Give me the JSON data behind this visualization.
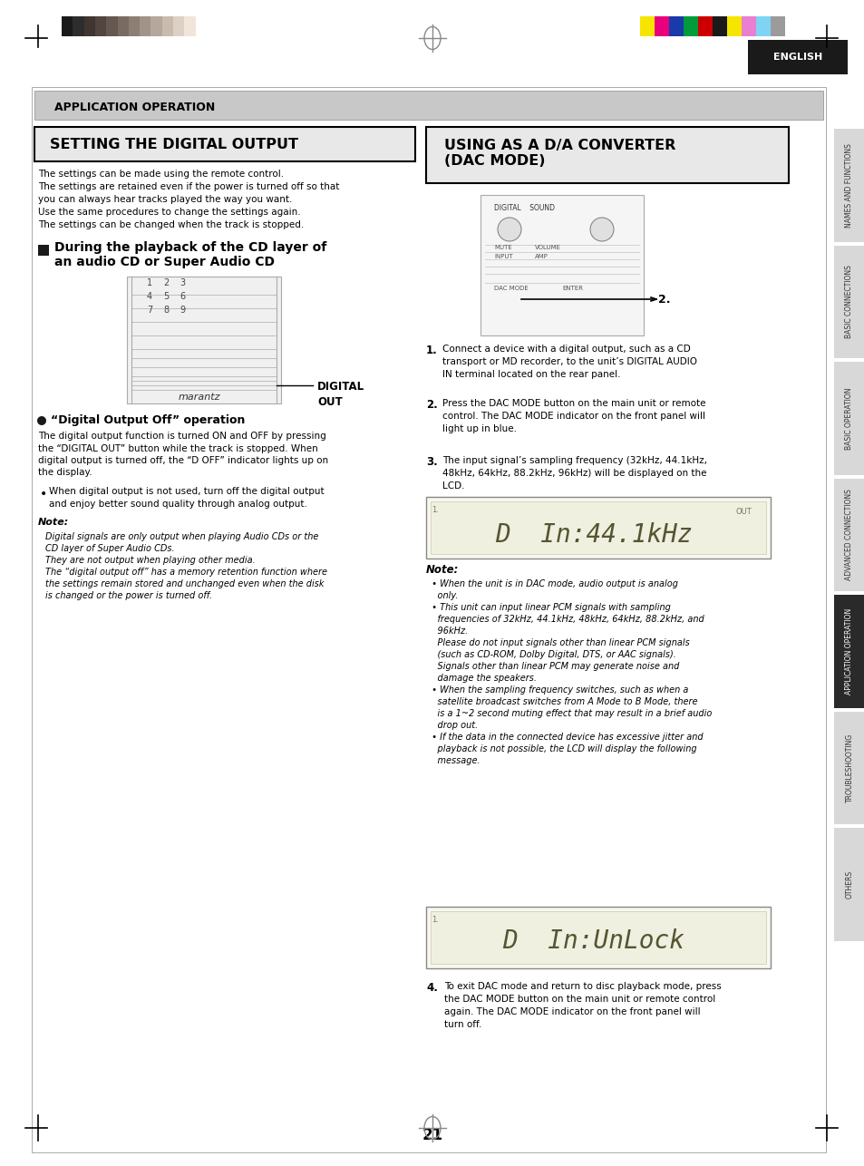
{
  "page_bg": "#ffffff",
  "header_color_strips_left": [
    "#1a1a1a",
    "#2d2d2d",
    "#3f3531",
    "#524540",
    "#665850",
    "#7a6b62",
    "#8e7f75",
    "#a29388",
    "#b6a79c",
    "#cabbaf",
    "#ddd0c5",
    "#f1e4d9",
    "#ffffff"
  ],
  "header_color_strips_right": [
    "#f5e500",
    "#e8007d",
    "#1a3aaa",
    "#009b3a",
    "#cc0000",
    "#1a1a1a",
    "#f5e500",
    "#e87fd0",
    "#7fd4f5",
    "#9b9b9b"
  ],
  "english_box_color": "#1a1a1a",
  "app_op_box_bg": "#d0d0d0",
  "app_op_text": "APPLICATION OPERATION",
  "left_section_title": "SETTING THE DIGITAL OUTPUT",
  "right_section_title": "USING AS A D/A CONVERTER\n(DAC MODE)",
  "sidebar_labels": [
    "NAMES AND FUNCTIONS",
    "BASIC CONNECTIONS",
    "BASIC OPERATION",
    "ADVANCED CONNECTIONS",
    "APPLICATION OPERATION",
    "TROUBLESHOOTING",
    "OTHERS"
  ],
  "sidebar_active": "APPLICATION OPERATION",
  "page_number": "21",
  "left_body_text": "The settings can be made using the remote control.\nThe settings are retained even if the power is turned off so that\nyou can always hear tracks played the way you want.\nUse the same procedures to change the settings again.\nThe settings can be changed when the track is stopped.",
  "section_heading": "During the playback of the CD layer of\nan audio CD or Super Audio CD",
  "digital_out_label": "DIGITAL\nOUT",
  "dot_heading": "“Digital Output Off” operation",
  "dot_body": "The digital output function is turned ON and OFF by pressing\nthe “DIGITAL OUT” button while the track is stopped. When\ndigital output is turned off, the “D OFF” indicator lights up on\nthe display.",
  "dot_bullet": "When digital output is not used, turn off the digital output\nand enjoy better sound quality through analog output.",
  "note_label": "Note:",
  "note_text_left": "Digital signals are only output when playing Audio CDs or the\nCD layer of Super Audio CDs.\nThey are not output when playing other media.\nThe “digital output off” has a memory retention function where\nthe settings remain stored and unchanged even when the disk\nis changed or the power is turned off.",
  "step1_text": "Connect a device with a digital output, such as a CD\ntransport or MD recorder, to the unit’s DIGITAL AUDIO\nIN terminal located on the rear panel.",
  "step2_text": "Press the DAC MODE button on the main unit or remote\ncontrol. The DAC MODE indicator on the front panel will\nlight up in blue.",
  "step3_text": "The input signal’s sampling frequency (32kHz, 44.1kHz,\n48kHz, 64kHz, 88.2kHz, 96kHz) will be displayed on the\nLCD.",
  "lcd_text1": "D  In:44.1kHz",
  "lcd_text2": "D  In:UnLock",
  "note_text_right": "When the unit is in DAC mode, audio output is analog\nonly.\nThis unit can input linear PCM signals with sampling\nfrequencies of 32kHz, 44.1kHz, 48kHz, 64kHz, 88.2kHz, and\n96kHz.\nPlease do not input signals other than linear PCM signals\n(such as CD-ROM, Dolby Digital, DTS, or AAC signals).\nSignals other than linear PCM may generate noise and\ndamage the speakers.\nWhen the sampling frequency switches, such as when a\nsatellite broadcast switches from A Mode to B Mode, there\nis a 1~2 second muting effect that may result in a brief audio\ndrop out.\nIf the data in the connected device has excessive jitter and\nplayback is not possible, the LCD will display the following\nmessage.",
  "step4_text": "To exit DAC mode and return to disc playback mode, press\nthe DAC MODE button on the main unit or remote control\nagain. The DAC MODE indicator on the front panel will\nturn off."
}
